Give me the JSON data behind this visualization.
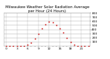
{
  "title": "Milwaukee Weather Solar Radiation Average",
  "subtitle": "per Hour (24 Hours)",
  "hours": [
    0,
    1,
    2,
    3,
    4,
    5,
    6,
    7,
    8,
    9,
    10,
    11,
    12,
    13,
    14,
    15,
    16,
    17,
    18,
    19,
    20,
    21,
    22,
    23
  ],
  "values": [
    0,
    0,
    0,
    0,
    0,
    2,
    25,
    85,
    175,
    290,
    420,
    530,
    590,
    570,
    510,
    430,
    320,
    200,
    95,
    25,
    3,
    0,
    0,
    0
  ],
  "dot_color": "#cc0000",
  "bg_color": "#ffffff",
  "grid_color": "#999999",
  "ylim": [
    0,
    800
  ],
  "yticks": [
    100,
    200,
    300,
    400,
    500,
    600,
    700,
    800
  ],
  "title_color": "#000000",
  "title_fontsize": 4.0,
  "tick_fontsize": 3.2,
  "marker_size": 1.2,
  "line_width": 0.0,
  "vgrid_positions": [
    0,
    3,
    6,
    9,
    12,
    15,
    18,
    21,
    24
  ]
}
